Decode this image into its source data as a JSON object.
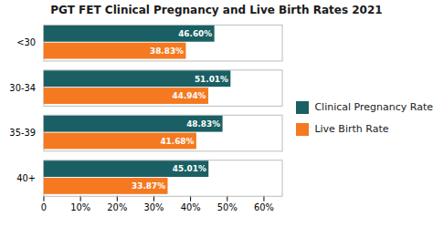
{
  "chart_data": {
    "type": "bar",
    "orientation": "horizontal",
    "title": "PGT FET Clinical Pregnancy and Live Birth Rates 2021",
    "categories": [
      "<30",
      "30-34",
      "35-39",
      "40+"
    ],
    "series": [
      {
        "name": "Clinical Pregnancy Rate",
        "color": "#1a5f63",
        "values": [
          46.6,
          51.01,
          48.83,
          45.01
        ],
        "value_labels": [
          "46.60%",
          "51.01%",
          "48.83%",
          "45.01%"
        ]
      },
      {
        "name": "Live Birth Rate",
        "color": "#f47920",
        "values": [
          38.83,
          44.94,
          41.68,
          33.87
        ],
        "value_labels": [
          "38.83%",
          "44.94%",
          "41.68%",
          "33.87%"
        ]
      }
    ],
    "xlim": [
      0,
      65
    ],
    "xticks": [
      0,
      {
        "value": 10,
        "label": "10%"
      },
      {
        "value": 20,
        "label": "20%"
      },
      {
        "value": 30,
        "label": "30%"
      },
      {
        "value": 40,
        "label": "40%"
      },
      {
        "value": 50,
        "label": "50%"
      },
      {
        "value": 60,
        "label": "60%"
      }
    ],
    "data_labels": true,
    "legend": "right",
    "grid": false
  }
}
